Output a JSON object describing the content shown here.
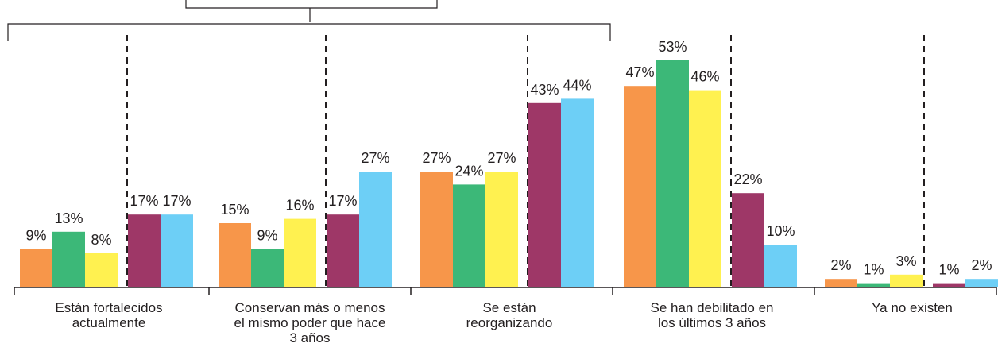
{
  "chart_data": {
    "type": "bar",
    "title": "",
    "xlabel": "",
    "ylabel": "",
    "ylim": [
      0,
      60
    ],
    "grid": false,
    "legend": "none",
    "categories": [
      [
        "Están fortalecidos",
        "actualmente"
      ],
      [
        "Conservan más o menos",
        "el mismo poder que hace",
        "3 años"
      ],
      [
        "Se están",
        "reorganizando"
      ],
      [
        "Se han debilitado en",
        "los últimos 3 años"
      ],
      [
        "Ya no existen"
      ]
    ],
    "series": [
      {
        "color": "#f7964a",
        "values": [
          9,
          15,
          27,
          47,
          2
        ]
      },
      {
        "color": "#3cb878",
        "values": [
          13,
          9,
          24,
          53,
          1
        ]
      },
      {
        "color": "#fff150",
        "values": [
          8,
          16,
          27,
          46,
          3
        ]
      },
      {
        "color": "#9e3767",
        "values": [
          17,
          17,
          43,
          22,
          1
        ]
      },
      {
        "color": "#6dcff6",
        "values": [
          17,
          27,
          44,
          10,
          2
        ]
      }
    ],
    "value_suffix": "%"
  }
}
